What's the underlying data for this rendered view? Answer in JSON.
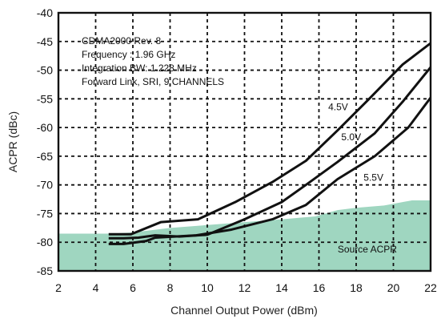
{
  "chart_data": {
    "type": "line",
    "xlabel": "Channel Output Power (dBm)",
    "ylabel": "ACPR (dBc)",
    "xlim": [
      2,
      22
    ],
    "ylim": [
      -85,
      -40
    ],
    "x_ticks": [
      2,
      4,
      6,
      8,
      10,
      12,
      14,
      16,
      18,
      20,
      22
    ],
    "y_ticks": [
      -40,
      -45,
      -50,
      -55,
      -60,
      -65,
      -70,
      -75,
      -80,
      -85
    ],
    "grid": true,
    "annotations": [
      "CDMA2000 Rev. 8",
      "Frequency : 1.96 GHz",
      "Integration BW: 1.228 MHz",
      "Forward Link, SRI, 9 CHANNELS"
    ],
    "series": [
      {
        "name": "4.5V",
        "color": "#111111",
        "x": [
          4.7,
          5.3,
          5.9,
          7.5,
          9.5,
          11.5,
          13.5,
          15.3,
          17,
          18.7,
          20.5,
          22
        ],
        "y": [
          -78.6,
          -78.6,
          -78.6,
          -76.5,
          -76,
          -73,
          -69.5,
          -65.8,
          -60.5,
          -55,
          -49,
          -45.3
        ]
      },
      {
        "name": "5.0V",
        "color": "#111111",
        "x": [
          4.7,
          5.5,
          6.3,
          7.2,
          8.5,
          10,
          12,
          14,
          15.3,
          17,
          19,
          20.5,
          22
        ],
        "y": [
          -79.3,
          -79.3,
          -79.2,
          -78.8,
          -79,
          -78.7,
          -76,
          -73,
          -70,
          -66,
          -61,
          -55.5,
          -49.5
        ]
      },
      {
        "name": "5.5V",
        "color": "#111111",
        "x": [
          4.7,
          5.5,
          6.7,
          7.2,
          9.4,
          11.3,
          13.5,
          15.3,
          17,
          19,
          20.8,
          22
        ],
        "y": [
          -80.3,
          -80.3,
          -79.8,
          -79.2,
          -78.8,
          -77.8,
          -76,
          -73.5,
          -69,
          -65,
          -60,
          -54.8
        ]
      }
    ],
    "filled_region": {
      "name": "Source ACPR",
      "color": "#9fd6c0",
      "x": [
        2,
        4.8,
        6,
        8,
        10,
        12,
        14,
        15.8,
        17,
        18,
        19.5,
        21,
        22
      ],
      "y": [
        -78.5,
        -78.5,
        -78.3,
        -77.5,
        -77,
        -76.5,
        -76,
        -75.5,
        -74.4,
        -74,
        -73.6,
        -72.7,
        -72.7
      ]
    },
    "series_label_positions": {
      "4.5V": [
        16.5,
        -57
      ],
      "5.0V": [
        17.2,
        -62.2
      ],
      "5.5V": [
        18.4,
        -69.3
      ]
    },
    "region_label_position": [
      18.6,
      -81.8
    ]
  }
}
